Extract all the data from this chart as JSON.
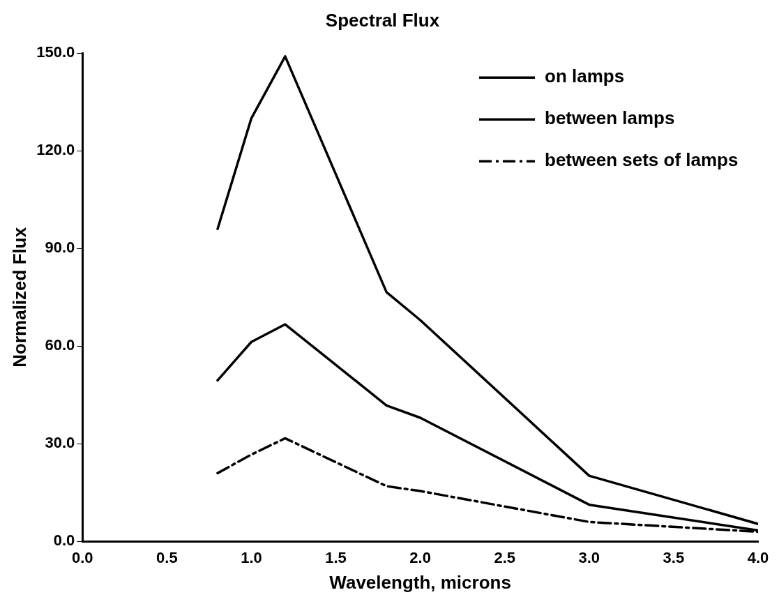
{
  "chart_data": {
    "type": "line",
    "title": "Spectral Flux",
    "xlabel": "Wavelength, microns",
    "ylabel": "Normalized Flux",
    "x": [
      0.8,
      1.0,
      1.2,
      1.8,
      2.0,
      3.0,
      4.0
    ],
    "series": [
      {
        "name": "on lamps",
        "color": "#000000",
        "line_style": "solid",
        "values": [
          96,
          130,
          149,
          76.6,
          68,
          20.2,
          5.4
        ]
      },
      {
        "name": "between lamps",
        "color": "#000000",
        "line_style": "solid",
        "values": [
          49.5,
          61.3,
          66.7,
          41.8,
          38,
          11.3,
          3.4
        ]
      },
      {
        "name": "between sets of lamps",
        "color": "#000000",
        "line_style": "dashed",
        "values": [
          21,
          26.7,
          31.7,
          17,
          15.5,
          6,
          3
        ]
      }
    ],
    "xlim": [
      0,
      4
    ],
    "xticks": [
      {
        "value": 0,
        "label": "0.0"
      },
      {
        "value": 0.5,
        "label": "0.5"
      },
      {
        "value": 1,
        "label": "1.0"
      },
      {
        "value": 1.5,
        "label": "1.5"
      },
      {
        "value": 2,
        "label": "2.0"
      },
      {
        "value": 2.5,
        "label": "2.5"
      },
      {
        "value": 3,
        "label": "3.0"
      },
      {
        "value": 3.5,
        "label": "3.5"
      },
      {
        "value": 4,
        "label": "4.0"
      }
    ],
    "ylim": [
      0,
      150
    ],
    "yticks": [
      {
        "value": 0,
        "label": "0.0"
      },
      {
        "value": 30,
        "label": "30.0"
      },
      {
        "value": 60,
        "label": "60.0"
      },
      {
        "value": 90,
        "label": "90.0"
      },
      {
        "value": 120,
        "label": "120.0"
      },
      {
        "value": 150,
        "label": "150.0"
      }
    ],
    "grid": false,
    "legend": "top right",
    "marker": "none"
  }
}
